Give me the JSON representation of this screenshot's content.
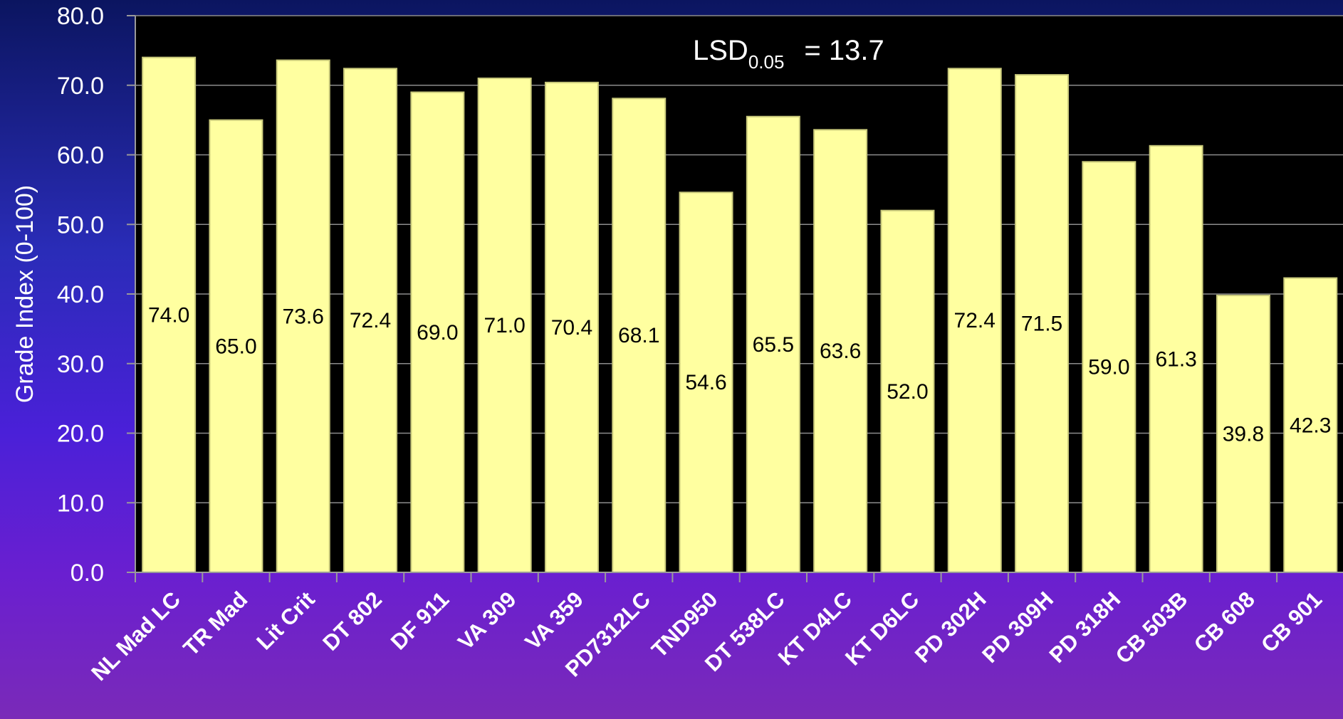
{
  "chart_data": {
    "type": "bar",
    "categories": [
      "NL Mad LC",
      "TR Mad",
      "Lit Crit",
      "DT 802",
      "DF 911",
      "VA 309",
      "VA 359",
      "PD7312LC",
      "TND950",
      "DT 538LC",
      "KT D4LC",
      "KT D6LC",
      "PD 302H",
      "PD 309H",
      "PD 318H",
      "CB 503B",
      "CB 608",
      "CB 901"
    ],
    "values": [
      74.0,
      65.0,
      73.6,
      72.4,
      69.0,
      71.0,
      70.4,
      68.1,
      54.6,
      65.5,
      63.6,
      52.0,
      72.4,
      71.5,
      59.0,
      61.3,
      39.8,
      42.3
    ],
    "data_labels": [
      "74.0",
      "65.0",
      "73.6",
      "72.4",
      "69.0",
      "71.0",
      "70.4",
      "68.1",
      "54.6",
      "65.5",
      "63.6",
      "52.0",
      "72.4",
      "71.5",
      "59.0",
      "61.3",
      "39.8",
      "42.3"
    ],
    "yticks": [
      "0.0",
      "10.0",
      "20.0",
      "30.0",
      "40.0",
      "50.0",
      "60.0",
      "70.0",
      "80.0"
    ],
    "ylim": [
      0,
      80
    ],
    "ylabel": "Grade Index (0-100)",
    "xlabel": "",
    "title": "",
    "annotation": {
      "main": "LSD",
      "sub": "0.05",
      "rest": "=  13.7"
    },
    "grid": true,
    "colors": {
      "bar": "#FFFFA0",
      "bar_stroke": "#C8C87A",
      "plot_bg": "#000000",
      "grid": "#8C8C8C",
      "text": "#FFFFFF"
    }
  }
}
